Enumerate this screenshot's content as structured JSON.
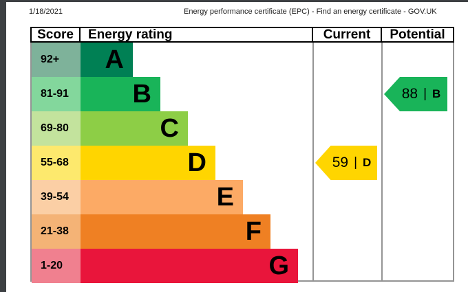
{
  "page": {
    "date": "1/18/2021",
    "title": "Energy performance certificate (EPC) - Find an energy certificate - GOV.UK"
  },
  "table": {
    "score_header": "Score",
    "rating_header": "Energy rating",
    "current_header": "Current",
    "potential_header": "Potential"
  },
  "chart_data": {
    "type": "bar",
    "title": "EPC energy efficiency rating bands",
    "legend_position": "none",
    "bands": [
      {
        "letter": "A",
        "score_range": "92+",
        "color": "#008054",
        "score_tint": "#7eb29a"
      },
      {
        "letter": "B",
        "score_range": "81-91",
        "color": "#19b459",
        "score_tint": "#83d79c"
      },
      {
        "letter": "C",
        "score_range": "69-80",
        "color": "#8dce46",
        "score_tint": "#c3e39d"
      },
      {
        "letter": "D",
        "score_range": "55-68",
        "color": "#ffd500",
        "score_tint": "#fde96d"
      },
      {
        "letter": "E",
        "score_range": "39-54",
        "color": "#fcaa65",
        "score_tint": "#fbcfa5"
      },
      {
        "letter": "F",
        "score_range": "21-38",
        "color": "#ef8023",
        "score_tint": "#f4b376"
      },
      {
        "letter": "G",
        "score_range": "1-20",
        "color": "#e9153b",
        "score_tint": "#f0808f"
      }
    ],
    "current": {
      "value": "59",
      "band": "D",
      "separator": "|",
      "color": "#ffd500",
      "band_index": 3
    },
    "potential": {
      "value": "88",
      "band": "B",
      "separator": "|",
      "color": "#19b459",
      "band_index": 1
    }
  }
}
